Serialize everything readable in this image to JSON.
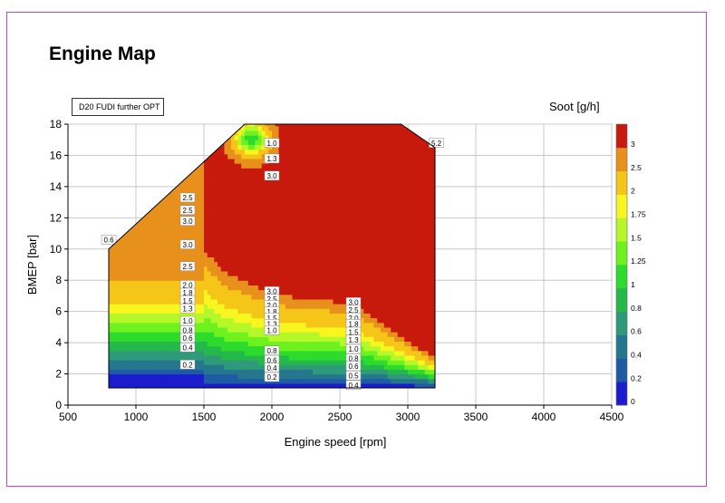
{
  "chart_data": {
    "type": "heatmap",
    "subtype": "contour",
    "title": "Engine Map",
    "dataset_label": "D20 FUDI further OPT",
    "value_label": "Soot [g/h]",
    "xlabel": "Engine speed [rpm]",
    "ylabel": "BMEP [bar]",
    "xlim": [
      500,
      4500
    ],
    "ylim": [
      0,
      18
    ],
    "x_ticks": [
      "500",
      "1000",
      "1500",
      "2000",
      "2500",
      "3000",
      "3500",
      "4000",
      "4500"
    ],
    "y_ticks": [
      "0",
      "2",
      "4",
      "6",
      "8",
      "10",
      "12",
      "14",
      "16",
      "18"
    ],
    "grid": true,
    "colorbar": {
      "labels": [
        "3",
        "2.5",
        "2",
        "1.75",
        "1.5",
        "1.25",
        "1",
        "0.8",
        "0.6",
        "0.4",
        "0.2",
        "0"
      ],
      "levels": [
        0,
        0.2,
        0.4,
        0.6,
        0.8,
        1,
        1.25,
        1.5,
        1.75,
        2,
        2.5,
        3
      ],
      "colors": [
        "#1c1ccf",
        "#1f5aa5",
        "#25778d",
        "#2e9a7a",
        "#25b84a",
        "#2cdb2c",
        "#6ef21f",
        "#b6f72a",
        "#f7f71f",
        "#f5c518",
        "#e8901c",
        "#c81a0c"
      ]
    },
    "valid_region": [
      [
        800,
        1.1
      ],
      [
        800,
        10
      ],
      [
        1800,
        18
      ],
      [
        2950,
        18
      ],
      [
        3200,
        16.5
      ],
      [
        3200,
        1.1
      ]
    ],
    "contour_labels": [
      {
        "x": 800,
        "y": 10.6,
        "label": "0.6"
      },
      {
        "x": 2000,
        "y": 16.8,
        "label": "1.0"
      },
      {
        "x": 2000,
        "y": 15.8,
        "label": "1.3"
      },
      {
        "x": 2000,
        "y": 14.7,
        "label": "3.0"
      },
      {
        "x": 3210,
        "y": 16.8,
        "label": "5.2"
      },
      {
        "x": 1380,
        "y": 13.3,
        "label": "2.5"
      },
      {
        "x": 1380,
        "y": 12.5,
        "label": "2.5"
      },
      {
        "x": 1380,
        "y": 11.8,
        "label": "3.0"
      },
      {
        "x": 1380,
        "y": 10.3,
        "label": "3.0"
      },
      {
        "x": 1380,
        "y": 8.9,
        "label": "2.5"
      },
      {
        "x": 1380,
        "y": 7.7,
        "label": "2.0"
      },
      {
        "x": 1380,
        "y": 7.2,
        "label": "1.8"
      },
      {
        "x": 1380,
        "y": 6.7,
        "label": "1.5"
      },
      {
        "x": 1380,
        "y": 6.2,
        "label": "1.3"
      },
      {
        "x": 1380,
        "y": 5.4,
        "label": "1.0"
      },
      {
        "x": 1380,
        "y": 4.8,
        "label": "0.8"
      },
      {
        "x": 1380,
        "y": 4.3,
        "label": "0.6"
      },
      {
        "x": 1380,
        "y": 3.7,
        "label": "0.4"
      },
      {
        "x": 1380,
        "y": 2.6,
        "label": "0.2"
      },
      {
        "x": 2000,
        "y": 7.3,
        "label": "3.0"
      },
      {
        "x": 2000,
        "y": 6.8,
        "label": "2.5"
      },
      {
        "x": 2000,
        "y": 6.4,
        "label": "2.0"
      },
      {
        "x": 2000,
        "y": 6.0,
        "label": "1.8"
      },
      {
        "x": 2000,
        "y": 5.6,
        "label": "1.5"
      },
      {
        "x": 2000,
        "y": 5.2,
        "label": "1.3"
      },
      {
        "x": 2000,
        "y": 4.8,
        "label": "1.0"
      },
      {
        "x": 2000,
        "y": 3.5,
        "label": "0.8"
      },
      {
        "x": 2000,
        "y": 2.9,
        "label": "0.6"
      },
      {
        "x": 2000,
        "y": 2.4,
        "label": "0.4"
      },
      {
        "x": 2000,
        "y": 1.8,
        "label": "0.2"
      },
      {
        "x": 2600,
        "y": 6.6,
        "label": "3.0"
      },
      {
        "x": 2600,
        "y": 6.1,
        "label": "2.5"
      },
      {
        "x": 2600,
        "y": 5.6,
        "label": "2.0"
      },
      {
        "x": 2600,
        "y": 5.2,
        "label": "1.8"
      },
      {
        "x": 2600,
        "y": 4.7,
        "label": "1.5"
      },
      {
        "x": 2600,
        "y": 4.2,
        "label": "1.3"
      },
      {
        "x": 2600,
        "y": 3.6,
        "label": "1.0"
      },
      {
        "x": 2600,
        "y": 3.0,
        "label": "0.8"
      },
      {
        "x": 2600,
        "y": 2.5,
        "label": "0.6"
      },
      {
        "x": 2600,
        "y": 1.9,
        "label": "0.5"
      },
      {
        "x": 2600,
        "y": 1.3,
        "label": "0.4"
      }
    ]
  }
}
